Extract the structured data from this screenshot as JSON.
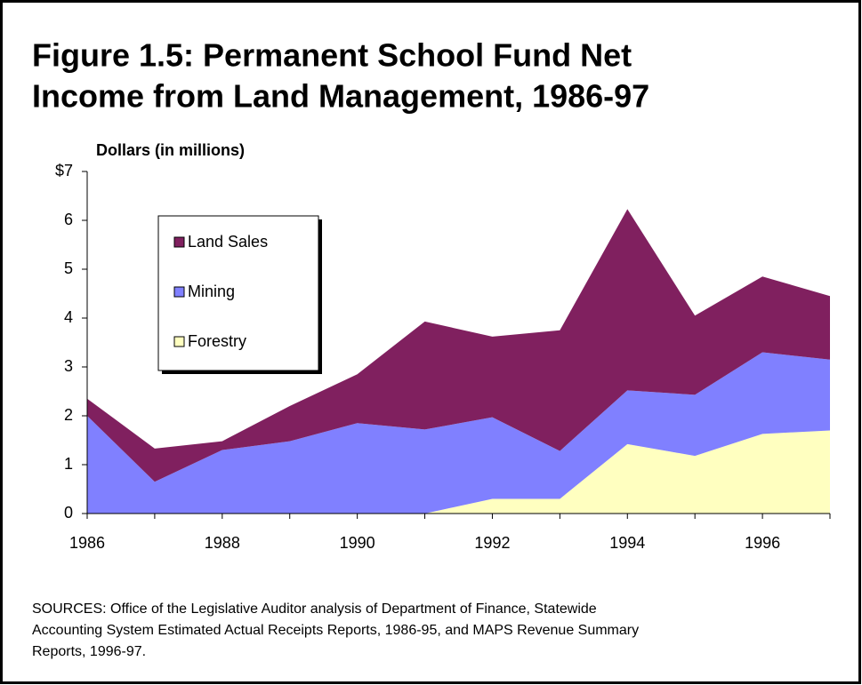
{
  "chart_data": {
    "type": "area",
    "title": [
      "Figure 1.5:  Permanent School Fund Net",
      "Income from Land Management, 1986-97"
    ],
    "y_label": "Dollars (in millions)",
    "x": [
      1986,
      1987,
      1988,
      1989,
      1990,
      1991,
      1992,
      1993,
      1994,
      1995,
      1996,
      1997
    ],
    "series": [
      {
        "name": "Forestry",
        "color": "#ffffc0",
        "values": [
          0,
          0,
          0,
          0,
          0,
          0,
          0.3,
          0.3,
          1.42,
          1.18,
          1.63,
          1.7
        ]
      },
      {
        "name": "Mining",
        "color": "#8080ff",
        "values": [
          2.0,
          0.65,
          1.3,
          1.48,
          1.85,
          1.72,
          1.67,
          0.98,
          1.1,
          1.25,
          1.67,
          1.45
        ]
      },
      {
        "name": "Land Sales",
        "color": "#80205f",
        "values": [
          0.35,
          0.68,
          0.18,
          0.72,
          1.0,
          2.21,
          1.65,
          2.47,
          3.71,
          1.62,
          1.55,
          1.3
        ]
      }
    ],
    "stacked": true,
    "xlim": [
      1986,
      1997
    ],
    "xticks": [
      1986,
      1988,
      1990,
      1992,
      1994,
      1996
    ],
    "ylim": [
      0,
      7
    ],
    "yticks": [
      0,
      1,
      2,
      3,
      4,
      5,
      6,
      {
        "value": 7,
        "label": "$7"
      }
    ],
    "legend": "upper left",
    "source": [
      "SOURCES: Office of the Legislative Auditor analysis of Department of Finance, Statewide",
      "Accounting System Estimated Actual Receipts Reports, 1986-95, and MAPS Revenue Summary",
      "Reports, 1996-97."
    ]
  }
}
